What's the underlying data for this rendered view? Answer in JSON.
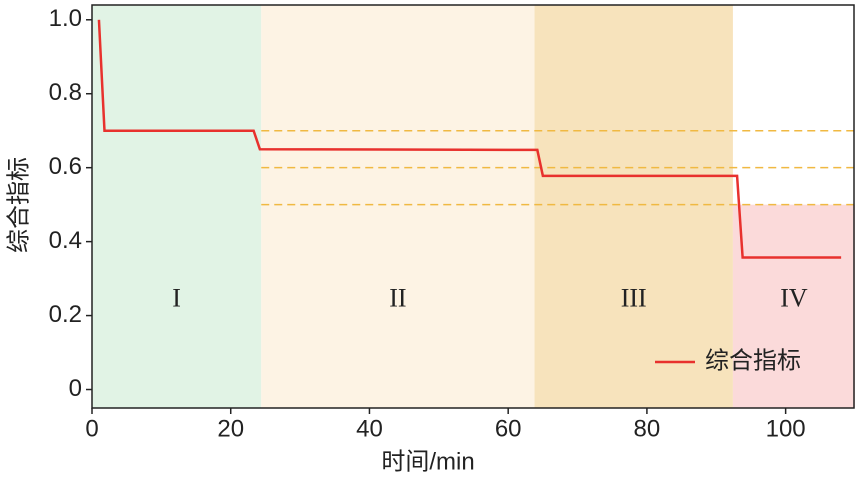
{
  "chart_data": {
    "type": "line",
    "xlabel": "时间/min",
    "ylabel": "综合指标",
    "xlim": [
      0,
      110
    ],
    "ylim": [
      -0.05,
      1.04
    ],
    "xticks": [
      0,
      20,
      40,
      60,
      80,
      100
    ],
    "yticks": [
      0,
      0.2,
      0.4,
      0.6,
      0.8,
      {
        "value": 1,
        "label": "1.0"
      }
    ],
    "regions": [
      {
        "label": "I",
        "x0": 0,
        "x1": 24.4,
        "color": "#e1f3e5"
      },
      {
        "label": "II",
        "x0": 24.4,
        "x1": 63.8,
        "color": "#fdf3e4"
      },
      {
        "label": "III",
        "x0": 63.8,
        "x1": 92.4,
        "color": "#f7e3bc"
      },
      {
        "label": "IV",
        "x0": 92.4,
        "x1": 110,
        "ymax": 0.5,
        "color": "#fbdada"
      }
    ],
    "region_label_y": 0.24,
    "hlines": [
      0.7,
      0.6,
      0.5
    ],
    "hline_color": "#f0b942",
    "legend": "lower right",
    "series": [
      {
        "name": "综合指标",
        "color": "#e8312d",
        "x": [
          1,
          1.8,
          23.3,
          24.2,
          64.2,
          65,
          93,
          93.8,
          108
        ],
        "values": [
          1.0,
          0.7,
          0.7,
          0.65,
          0.648,
          0.578,
          0.578,
          0.357,
          0.357
        ]
      }
    ]
  }
}
